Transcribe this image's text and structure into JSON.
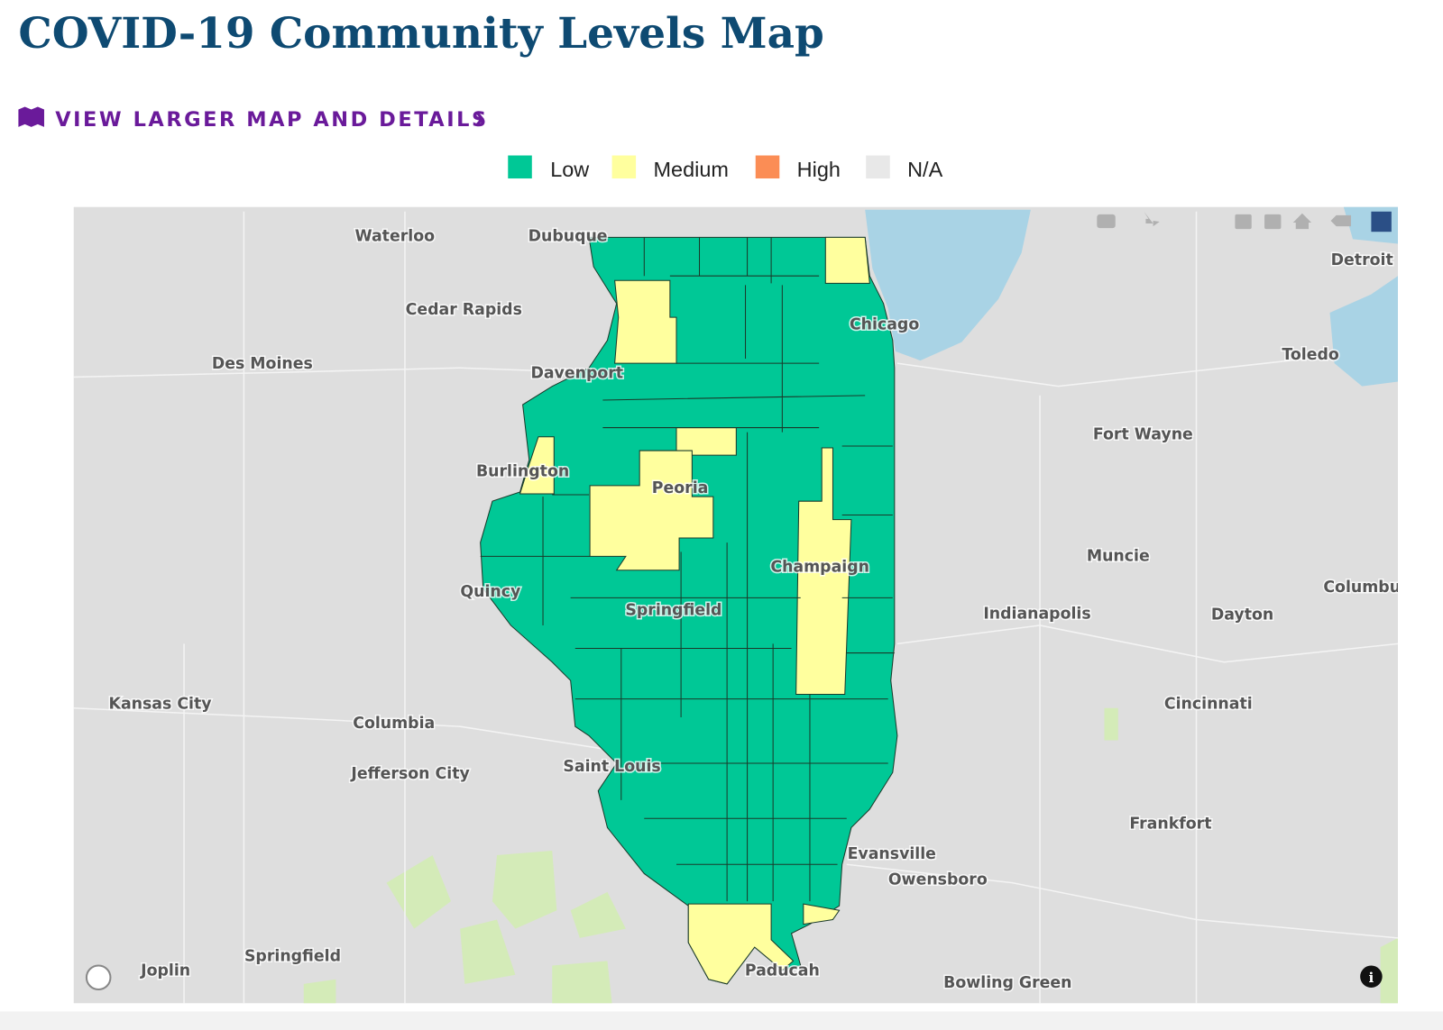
{
  "header": {
    "title": "COVID-19 Community Levels Map",
    "link": "VIEW LARGER MAP AND DETAILS"
  },
  "legend": [
    {
      "label": "Low",
      "color": "#00c896"
    },
    {
      "label": "Medium",
      "color": "#ffff9e"
    },
    {
      "label": "High",
      "color": "#fb8d55"
    },
    {
      "label": "N/A",
      "color": "#e8e8e8"
    }
  ],
  "map": {
    "cities": [
      "Waterloo",
      "Dubuque",
      "Cedar Rapids",
      "Des Moines",
      "Davenport",
      "Chicago",
      "Detroit",
      "Toledo",
      "Fort Wayne",
      "Burlington",
      "Peoria",
      "Champaign",
      "Muncie",
      "Quincy",
      "Springfield",
      "Indianapolis",
      "Dayton",
      "Columbu",
      "Kansas City",
      "Columbia",
      "Cincinnati",
      "Jefferson City",
      "Saint Louis",
      "Frankfort",
      "Evansville",
      "Owensboro",
      "Springfield",
      "Joplin",
      "Paducah",
      "Bowling Green"
    ]
  }
}
